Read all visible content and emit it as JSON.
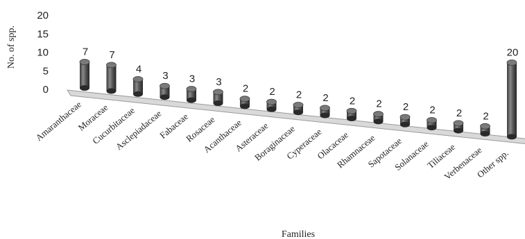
{
  "chart_data": {
    "type": "bar",
    "style": "3d-cylinder",
    "categories": [
      "Amaranthaceae",
      "Moraceae",
      "Cucurbitaceae",
      "Asclepiadaceae",
      "Fabaceae",
      "Rosaceae",
      "Acanthaceae",
      "Asteraceae",
      "Boraginaceae",
      "Cyperaceae",
      "Olacaceae",
      "Rhamnaceae",
      "Sapotaceae",
      "Solanaceae",
      "Tiliaceae",
      "Verbenaceae",
      "Other spp."
    ],
    "values": [
      7,
      7,
      4,
      3,
      3,
      3,
      2,
      2,
      2,
      2,
      2,
      2,
      2,
      2,
      2,
      2,
      20
    ],
    "data_labels": [
      "7",
      "7",
      "4",
      "3",
      "3",
      "3",
      "2",
      "2",
      "2",
      "2",
      "2",
      "2",
      "2",
      "2",
      "2",
      "2",
      "20"
    ],
    "xlabel": "Families",
    "ylabel": "No. of spp.",
    "ylim": [
      0,
      20
    ],
    "yticks": [
      "0",
      "5",
      "10",
      "15",
      "20"
    ],
    "grid": false,
    "legend": "none",
    "colors": {
      "bar_dark": "#2e2e2e",
      "bar_mid": "#6f6f6f",
      "bar_light": "#a8a8a8",
      "floor": "#d9d9d9",
      "floor_edge": "#9a9a9a"
    }
  }
}
